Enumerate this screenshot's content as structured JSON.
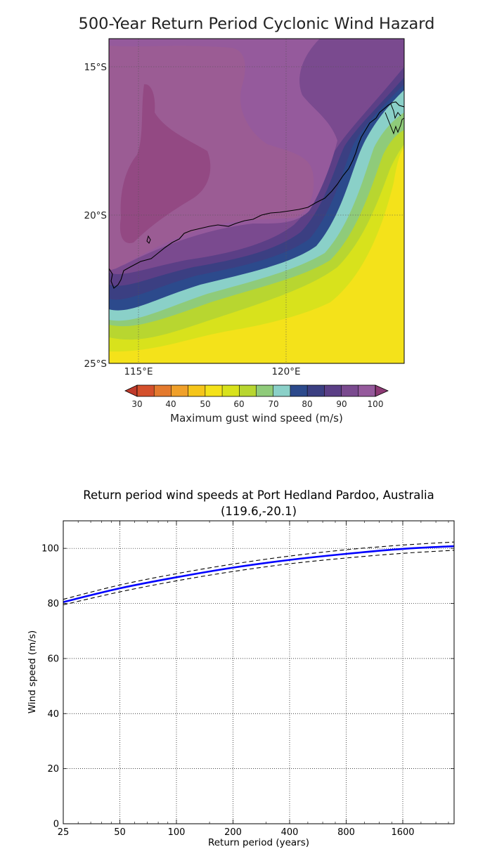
{
  "chart_data": [
    {
      "type": "heatmap",
      "title": "500-Year Return Period Cyclonic Wind Hazard",
      "y_ticks": [
        "15°S",
        "20°S",
        "25°S"
      ],
      "x_ticks": [
        "115°E",
        "120°E"
      ],
      "lat_range": [
        -14,
        -25
      ],
      "lon_range": [
        114,
        124
      ],
      "colorbar": {
        "label": "Maximum gust wind speed (m/s)",
        "ticks": [
          "30",
          "40",
          "50",
          "60",
          "70",
          "80",
          "90",
          "100"
        ],
        "levels": [
          25,
          30,
          35,
          40,
          45,
          50,
          55,
          60,
          65,
          70,
          75,
          80,
          85,
          90,
          95,
          100,
          105
        ],
        "colors": [
          "#c03a2b",
          "#d4502c",
          "#e47a2e",
          "#f0a02a",
          "#f5c51a",
          "#f4e21a",
          "#d8e21c",
          "#b8d630",
          "#8fcb7a",
          "#8ad0c8",
          "#2c4a8c",
          "#3b3f82",
          "#5b3f86",
          "#7a4a8f",
          "#955a9c",
          "#9b5c94"
        ],
        "under_color": "#c03a2b",
        "over_color": "#8d3a74",
        "extend": "both"
      }
    },
    {
      "type": "line",
      "title": "Return period wind speeds at Port Hedland Pardoo, Australia",
      "subtitle": "(119.6,-20.1)",
      "xlabel": "Return period (years)",
      "ylabel": "Wind speed (m/s)",
      "x_scale": "log2",
      "x_ticks": [
        "25",
        "50",
        "100",
        "200",
        "400",
        "800",
        "1600"
      ],
      "x_tick_values": [
        25,
        50,
        100,
        200,
        400,
        800,
        1600
      ],
      "y_ticks": [
        "0",
        "20",
        "40",
        "60",
        "80",
        "100"
      ],
      "y_tick_values": [
        0,
        20,
        40,
        60,
        80,
        100
      ],
      "xlim": [
        25,
        3000
      ],
      "ylim": [
        0,
        110
      ],
      "grid": true,
      "series": [
        {
          "role": "estimate",
          "style": "solid",
          "color": "#0000ff",
          "x": [
            25,
            50,
            100,
            200,
            400,
            800,
            1600,
            3000
          ],
          "y": [
            80.5,
            85.5,
            89.5,
            93,
            95.8,
            98,
            99.8,
            100.8
          ]
        },
        {
          "role": "upper",
          "style": "dashed",
          "color": "#000000",
          "x": [
            25,
            50,
            100,
            200,
            400,
            800,
            1600,
            3000
          ],
          "y": [
            81.5,
            86.7,
            90.8,
            94.3,
            97.2,
            99.5,
            101.2,
            102.3
          ]
        },
        {
          "role": "lower",
          "style": "dashed",
          "color": "#000000",
          "x": [
            25,
            50,
            100,
            200,
            400,
            800,
            1600,
            3000
          ],
          "y": [
            79.5,
            84.2,
            88.2,
            91.6,
            94.4,
            96.5,
            98.2,
            99.3
          ]
        }
      ]
    }
  ]
}
